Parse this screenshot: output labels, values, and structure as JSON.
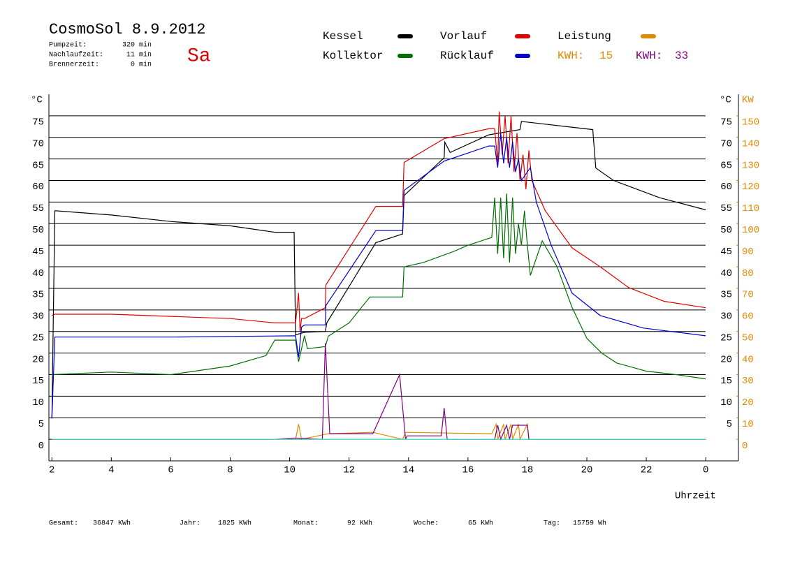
{
  "chart_data": {
    "type": "line",
    "title": "CosmoSol 8.9.2012",
    "day": "Sa",
    "stats": [
      {
        "label": "Pumpzeit:",
        "value": "320 min"
      },
      {
        "label": "Nachlaufzeit:",
        "value": "11 min"
      },
      {
        "label": "Brennerzeit:",
        "value": "0 min"
      }
    ],
    "kwh": [
      {
        "label": "KWH:",
        "value": 15,
        "color": "#e08a00"
      },
      {
        "label": "KWH:",
        "value": 33,
        "color": "#800080"
      }
    ],
    "y_label": "°C",
    "y2_label": "KW",
    "x_label": "Uhrzeit",
    "xlim": [
      1.9,
      25.1
    ],
    "xticks": [
      2,
      4,
      6,
      8,
      10,
      12,
      14,
      16,
      18,
      20,
      22,
      {
        "value": 24,
        "label": "0"
      }
    ],
    "ylim": [
      -5,
      80
    ],
    "yticks": [
      0,
      5,
      10,
      15,
      20,
      25,
      30,
      35,
      40,
      45,
      50,
      55,
      60,
      65,
      70,
      75
    ],
    "y2lim": [
      -10,
      160
    ],
    "y2ticks": [
      0,
      10,
      20,
      30,
      40,
      50,
      60,
      70,
      80,
      90,
      100,
      110,
      120,
      130,
      140,
      150
    ],
    "grid": true,
    "series": [
      {
        "name": "Kessel",
        "color": "#000000",
        "x": [
          2,
          2.1,
          4,
          6,
          8,
          9.5,
          10.15,
          10.2,
          10.5,
          11.2,
          11.25,
          12.9,
          13.8,
          13.85,
          15.2,
          15.22,
          15.4,
          16.7,
          17.75,
          17.8,
          20.2,
          20.3,
          20.9,
          22.45,
          24
        ],
        "values": [
          5,
          53,
          52,
          50.5,
          49.5,
          48,
          48,
          24.2,
          24.8,
          25,
          27,
          45.6,
          47.6,
          56.5,
          65.3,
          68.9,
          66.5,
          70.6,
          71.8,
          73.7,
          71.8,
          62.9,
          60,
          56,
          53.2
        ]
      },
      {
        "name": "Vorlauf",
        "color": "#e00000",
        "x": [
          2,
          2.1,
          4,
          8,
          9.5,
          10.2,
          10.3,
          10.35,
          10.4,
          10.5,
          11.2,
          11.22,
          12.9,
          13.8,
          13.85,
          15.2,
          16.7,
          16.9,
          17,
          17.05,
          17.15,
          17.25,
          17.35,
          17.45,
          17.55,
          17.65,
          17.75,
          17.85,
          17.95,
          18.05,
          18.15,
          18.6,
          19.5,
          20.45,
          21.4,
          22.6,
          24
        ],
        "values": [
          28.7,
          29,
          29,
          28,
          27,
          27,
          33.9,
          25,
          28,
          28,
          30.5,
          35.8,
          54,
          54,
          64.2,
          69.7,
          72,
          72,
          64,
          76,
          66,
          75,
          64,
          75,
          62,
          71,
          60,
          66,
          58,
          67,
          60,
          53,
          44.4,
          40,
          35.2,
          32,
          30.5
        ]
      },
      {
        "name": "Leistung",
        "color": "#e08a00",
        "axis": "y2",
        "x": [
          2,
          10.2,
          10.3,
          10.4,
          11.3,
          12.8,
          13.8,
          13.9,
          16.8,
          16.95,
          17.0,
          17.2,
          17.25,
          17.45,
          17.5,
          17.7,
          17.75,
          18.0,
          18.05,
          18.1,
          24
        ],
        "values": [
          0,
          0,
          7,
          0,
          2.6,
          3.2,
          0,
          3.2,
          2.6,
          7,
          0,
          7,
          0,
          7,
          0,
          7,
          0,
          7,
          0,
          0,
          0
        ]
      },
      {
        "name": "Kollektor",
        "color": "#007000",
        "x": [
          2,
          4,
          6,
          8,
          9.2,
          9.5,
          10.2,
          10.3,
          10.5,
          10.6,
          11.2,
          11.3,
          12,
          12.7,
          13.8,
          13.85,
          14.5,
          15.5,
          16,
          16.8,
          16.9,
          17,
          17.1,
          17.2,
          17.3,
          17.4,
          17.5,
          17.6,
          17.7,
          17.8,
          17.9,
          18,
          18.1,
          18.5,
          19,
          19.5,
          20,
          20.5,
          21,
          22,
          23,
          24
        ],
        "values": [
          15,
          15.6,
          15,
          17,
          19.4,
          23,
          23,
          18,
          24,
          21,
          21.5,
          23.9,
          27,
          33,
          33,
          40,
          41,
          43.5,
          45,
          46.8,
          56,
          43,
          56,
          42,
          57,
          41,
          56,
          43,
          50,
          45,
          53,
          45,
          38,
          46,
          40,
          30.6,
          23.4,
          20,
          17.7,
          15.8,
          15,
          14
        ]
      },
      {
        "name": "Rücklauf",
        "color": "#0000d0",
        "x": [
          2,
          2.1,
          6,
          10.2,
          10.3,
          10.4,
          10.5,
          11.2,
          11.22,
          12.9,
          13.8,
          13.85,
          15.2,
          16.7,
          16.9,
          17,
          17.1,
          17.2,
          17.3,
          17.4,
          17.5,
          17.6,
          17.7,
          17.8,
          18,
          18.1,
          18.3,
          18.8,
          19.5,
          20.45,
          21.9,
          24
        ],
        "values": [
          4.8,
          23.7,
          23.7,
          24,
          19,
          26,
          26.5,
          26.5,
          31,
          48.4,
          48.4,
          57.7,
          64.5,
          68,
          68,
          63,
          71,
          64,
          70,
          63,
          69,
          62,
          65,
          60,
          62,
          63,
          55,
          45,
          33.9,
          28.7,
          25.8,
          24
        ]
      },
      {
        "color": "#800080",
        "axis": "y2",
        "x": [
          2,
          9.5,
          10.2,
          11.1,
          11.2,
          11.35,
          12.8,
          13.7,
          13.9,
          13.95,
          15.1,
          15.2,
          15.3,
          16.9,
          17.0,
          17.1,
          17.3,
          17.4,
          17.5,
          18.0,
          18.05,
          18.1,
          24
        ],
        "values": [
          0,
          0,
          0.6,
          0,
          44.5,
          2.6,
          2.6,
          30,
          0,
          1.6,
          1.6,
          14.5,
          0,
          0,
          6.5,
          0,
          6.5,
          0,
          6.5,
          6.5,
          0,
          0,
          0
        ]
      },
      {
        "color": "#40e0d0",
        "x": [
          2,
          24
        ],
        "values": [
          0,
          0
        ]
      }
    ],
    "totals": [
      {
        "label": "Gesamt:",
        "value": "36847 KWh"
      },
      {
        "label": "Jahr:",
        "value": "1825 KWh"
      },
      {
        "label": "Monat:",
        "value": "92 KWh"
      },
      {
        "label": "Woche:",
        "value": "65 KWh"
      },
      {
        "label": "Tag:",
        "value": "15759 Wh"
      }
    ]
  }
}
